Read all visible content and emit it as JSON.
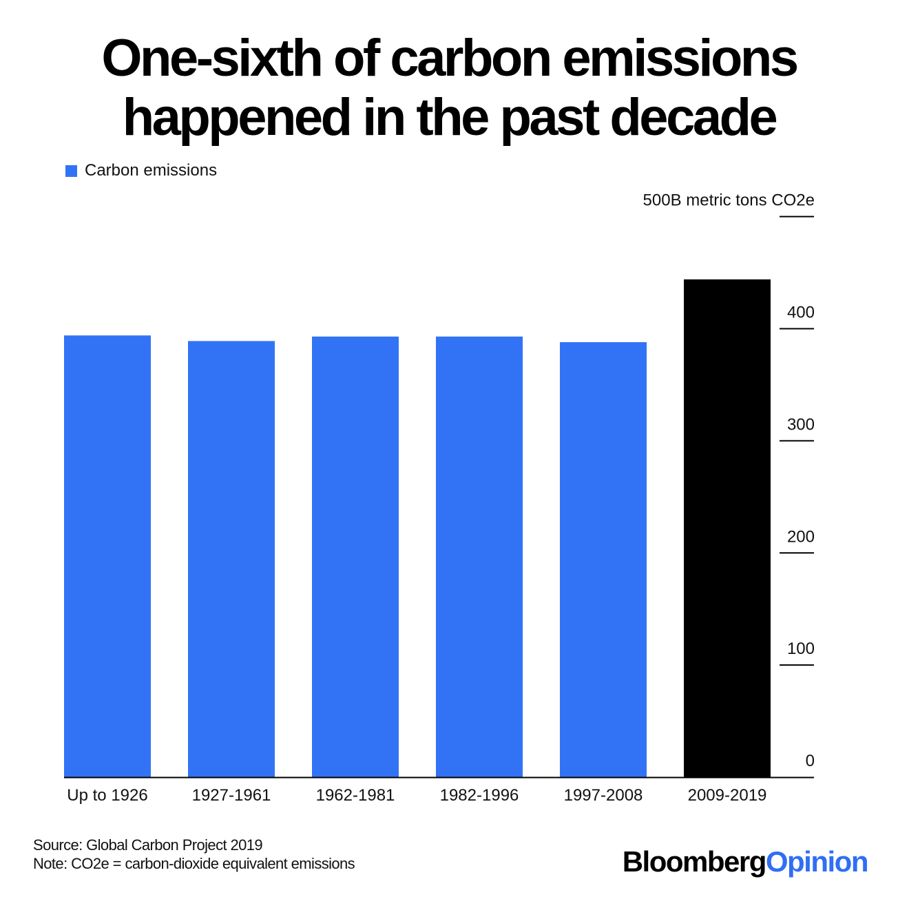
{
  "title_line1": "One-sixth of carbon emissions",
  "title_line2": "happened in the past decade",
  "legend": {
    "label": "Carbon emissions",
    "color": "#3273f6"
  },
  "chart_data": {
    "type": "bar",
    "title": "One-sixth of carbon emissions happened in the past decade",
    "categories": [
      "Up to 1926",
      "1927-1961",
      "1962-1981",
      "1982-1996",
      "1997-2008",
      "2009-2019"
    ],
    "series": [
      {
        "name": "Carbon emissions",
        "values": [
          394,
          389,
          393,
          393,
          388,
          444
        ]
      }
    ],
    "bar_colors": [
      "#3273f6",
      "#3273f6",
      "#3273f6",
      "#3273f6",
      "#3273f6",
      "#000000"
    ],
    "ylim": [
      0,
      500
    ],
    "yticks": [
      {
        "value": 500,
        "label": "500B metric tons CO2e"
      },
      {
        "value": 400,
        "label": "400"
      },
      {
        "value": 300,
        "label": "300"
      },
      {
        "value": 200,
        "label": "200"
      },
      {
        "value": 100,
        "label": "100"
      },
      {
        "value": 0,
        "label": "0"
      }
    ],
    "y_axis_side": "right",
    "grid": false,
    "legend_position": "top-left"
  },
  "footer": {
    "source": "Source: Global Carbon Project 2019",
    "note": "Note: CO2e = carbon-dioxide equivalent emissions"
  },
  "brand": {
    "part1": "Bloomberg",
    "part2": "Opinion"
  }
}
